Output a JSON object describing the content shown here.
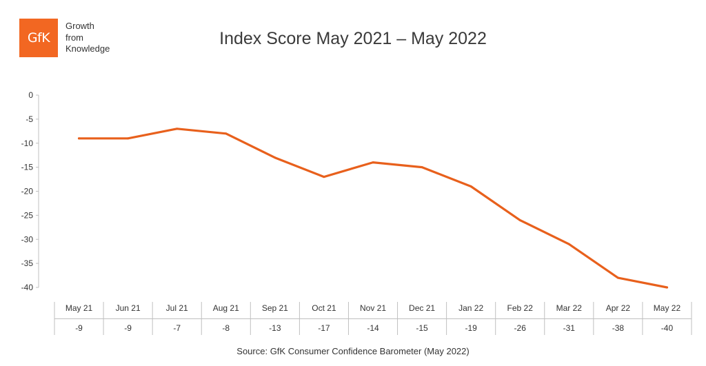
{
  "logo": {
    "mark": "GfK",
    "tagline": [
      "Growth",
      "from",
      "Knowledge"
    ],
    "color": "#f26722"
  },
  "source": "Source: GfK Consumer Confidence Barometer (May 2022)",
  "chart_data": {
    "type": "line",
    "title": "Index Score May 2021 – May 2022",
    "xlabel": "",
    "ylabel": "",
    "categories": [
      "May 21",
      "Jun 21",
      "Jul 21",
      "Aug 21",
      "Sep 21",
      "Oct 21",
      "Nov 21",
      "Dec 21",
      "Jan 22",
      "Feb 22",
      "Mar 22",
      "Apr 22",
      "May 22"
    ],
    "series": [
      {
        "values": [
          -9,
          -9,
          -7,
          -8,
          -13,
          -17,
          -14,
          -15,
          -19,
          -26,
          -31,
          -38,
          -40
        ],
        "color": "#e8601c"
      }
    ],
    "value_labels": [
      "-9",
      "-9",
      "-7",
      "-8",
      "-13",
      "-17",
      "-14",
      "-15",
      "-19",
      "-26",
      "-31",
      "-38",
      "-40"
    ],
    "yticks": [
      "0",
      "-5",
      "-10",
      "-15",
      "-20",
      "-25",
      "-30",
      "-35",
      "-40"
    ],
    "ytick_values": [
      0,
      -5,
      -10,
      -15,
      -20,
      -25,
      -30,
      -35,
      -40
    ],
    "ylim": [
      -40,
      0
    ],
    "grid": false,
    "legend": "none",
    "data_table": true
  }
}
